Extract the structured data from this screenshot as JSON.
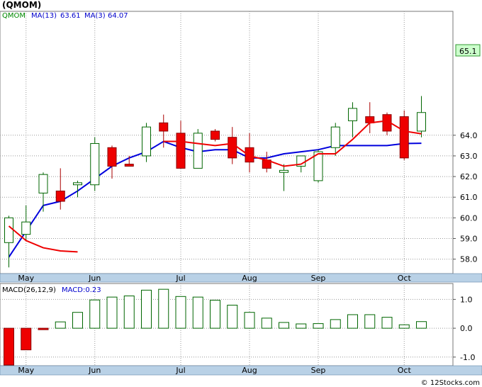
{
  "title": "(QMOM)",
  "footer": "© 12Stocks.com",
  "chart_data": [
    {
      "type": "candlestick",
      "legend": {
        "symbol": "QMOM",
        "ma13_label": "MA(13)",
        "ma13_value": "63.61",
        "ma3_label": "MA(3)",
        "ma3_value": "64.07"
      },
      "ylim": [
        57.3,
        70.0
      ],
      "y_ticks": [
        58,
        59,
        60,
        61,
        62,
        63,
        64
      ],
      "y_tick_labels": [
        "58.0",
        "59.0",
        "60.0",
        "61.0",
        "62.0",
        "63.0",
        "64.0"
      ],
      "last_price_label": "65.1",
      "last_price": 65.1,
      "x_ticks": [
        {
          "label": "May",
          "index": 1
        },
        {
          "label": "Jun",
          "index": 5
        },
        {
          "label": "Jul",
          "index": 10
        },
        {
          "label": "Aug",
          "index": 14
        },
        {
          "label": "Sep",
          "index": 18
        },
        {
          "label": "Oct",
          "index": 23
        }
      ],
      "candles": [
        {
          "o": 58.8,
          "h": 60.1,
          "l": 57.6,
          "c": 60.0
        },
        {
          "o": 59.2,
          "h": 60.6,
          "l": 58.9,
          "c": 59.8
        },
        {
          "o": 61.2,
          "h": 62.2,
          "l": 60.3,
          "c": 62.1
        },
        {
          "o": 61.3,
          "h": 62.4,
          "l": 60.4,
          "c": 60.8
        },
        {
          "o": 61.6,
          "h": 61.8,
          "l": 61.0,
          "c": 61.7
        },
        {
          "o": 61.6,
          "h": 63.9,
          "l": 61.3,
          "c": 63.6
        },
        {
          "o": 63.4,
          "h": 63.5,
          "l": 61.9,
          "c": 62.5
        },
        {
          "o": 62.6,
          "h": 63.0,
          "l": 62.5,
          "c": 62.5
        },
        {
          "o": 63.0,
          "h": 64.6,
          "l": 62.7,
          "c": 64.4
        },
        {
          "o": 64.6,
          "h": 65.0,
          "l": 63.4,
          "c": 64.2
        },
        {
          "o": 64.1,
          "h": 64.7,
          "l": 62.4,
          "c": 62.4
        },
        {
          "o": 62.4,
          "h": 64.3,
          "l": 62.4,
          "c": 64.1
        },
        {
          "o": 64.2,
          "h": 64.3,
          "l": 63.7,
          "c": 63.8
        },
        {
          "o": 63.9,
          "h": 64.4,
          "l": 62.6,
          "c": 62.9
        },
        {
          "o": 63.4,
          "h": 64.1,
          "l": 62.2,
          "c": 62.7
        },
        {
          "o": 62.8,
          "h": 63.2,
          "l": 62.2,
          "c": 62.4
        },
        {
          "o": 62.2,
          "h": 62.6,
          "l": 61.3,
          "c": 62.3
        },
        {
          "o": 62.5,
          "h": 63.0,
          "l": 62.2,
          "c": 63.0
        },
        {
          "o": 61.8,
          "h": 63.3,
          "l": 61.7,
          "c": 63.2
        },
        {
          "o": 63.4,
          "h": 64.6,
          "l": 63.0,
          "c": 64.4
        },
        {
          "o": 64.7,
          "h": 65.6,
          "l": 63.9,
          "c": 65.3
        },
        {
          "o": 64.9,
          "h": 65.6,
          "l": 64.1,
          "c": 64.6
        },
        {
          "o": 65.0,
          "h": 65.1,
          "l": 64.0,
          "c": 64.2
        },
        {
          "o": 64.9,
          "h": 65.2,
          "l": 62.8,
          "c": 62.9
        },
        {
          "o": 64.2,
          "h": 65.9,
          "l": 63.9,
          "c": 65.1
        }
      ],
      "ma3": {
        "name": "MA(3)",
        "color": "#ee0000",
        "points": [
          [
            0,
            59.6
          ],
          [
            1,
            58.9
          ],
          [
            2,
            58.55
          ],
          [
            3,
            58.4
          ],
          [
            4,
            58.35
          ],
          [
            9,
            63.7
          ],
          [
            10,
            63.7
          ],
          [
            11,
            63.6
          ],
          [
            12,
            63.5
          ],
          [
            13,
            63.6
          ],
          [
            14,
            63.0
          ],
          [
            15,
            62.8
          ],
          [
            16,
            62.5
          ],
          [
            17,
            62.6
          ],
          [
            18,
            63.1
          ],
          [
            19,
            63.1
          ],
          [
            20,
            63.8
          ],
          [
            21,
            64.6
          ],
          [
            22,
            64.7
          ],
          [
            23,
            64.2
          ],
          [
            24,
            64.07
          ]
        ]
      },
      "ma13": {
        "name": "MA(13)",
        "color": "#0000dd",
        "points": [
          [
            0,
            58.1
          ],
          [
            2,
            60.6
          ],
          [
            3,
            60.8
          ],
          [
            4,
            61.3
          ],
          [
            5,
            61.9
          ],
          [
            6,
            62.5
          ],
          [
            7,
            62.9
          ],
          [
            8,
            63.2
          ],
          [
            9,
            63.7
          ],
          [
            10,
            63.4
          ],
          [
            11,
            63.2
          ],
          [
            12,
            63.3
          ],
          [
            13,
            63.3
          ],
          [
            14,
            62.9
          ],
          [
            15,
            62.9
          ],
          [
            16,
            63.1
          ],
          [
            17,
            63.2
          ],
          [
            18,
            63.3
          ],
          [
            19,
            63.5
          ],
          [
            20,
            63.5
          ],
          [
            21,
            63.5
          ],
          [
            22,
            63.5
          ],
          [
            23,
            63.6
          ],
          [
            24,
            63.61
          ]
        ]
      }
    },
    {
      "type": "bar",
      "label": "MACD(26,12,9)",
      "value_label": "MACD:0.23",
      "ylim": [
        -1.3,
        1.55
      ],
      "y_ticks": [
        -1.0,
        0.0,
        1.0
      ],
      "y_tick_labels": [
        "-1.0",
        "0.0",
        "1.0"
      ],
      "values": [
        -1.35,
        -0.75,
        -0.05,
        0.22,
        0.55,
        0.98,
        1.08,
        1.12,
        1.32,
        1.35,
        1.1,
        1.08,
        0.97,
        0.8,
        0.55,
        0.35,
        0.2,
        0.15,
        0.16,
        0.3,
        0.47,
        0.47,
        0.38,
        0.12,
        0.23
      ]
    }
  ]
}
